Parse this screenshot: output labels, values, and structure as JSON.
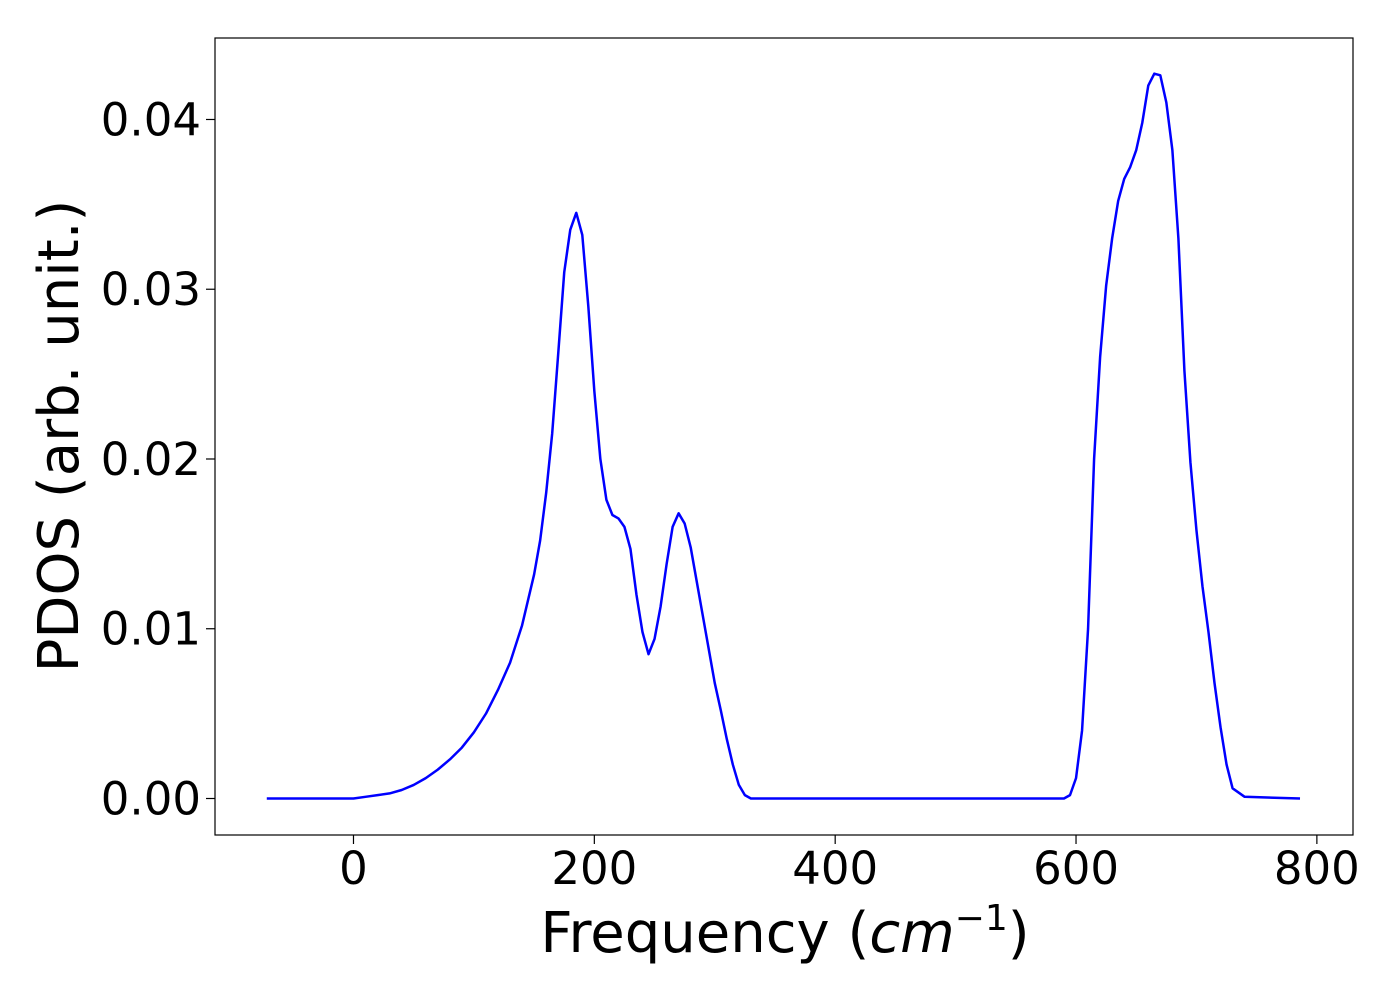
{
  "chart_data": {
    "type": "line",
    "xlabel_prefix": "Frequency (",
    "xlabel_unit": "cm",
    "xlabel_exponent": "−1",
    "xlabel_suffix": ")",
    "ylabel": "PDOS (arb. unit.)",
    "xlim": [
      -115,
      830
    ],
    "ylim": [
      -0.00215,
      0.0448
    ],
    "xticks": [
      0,
      200,
      400,
      600,
      800
    ],
    "xtick_labels": [
      "0",
      "200",
      "400",
      "600",
      "800"
    ],
    "yticks": [
      0.0,
      0.01,
      0.02,
      0.03,
      0.04
    ],
    "ytick_labels": [
      "0.00",
      "0.01",
      "0.02",
      "0.03",
      "0.04"
    ],
    "grid": false,
    "series": [
      {
        "color": "#0000ff",
        "x": [
          -72,
          -40,
          0,
          10,
          20,
          30,
          40,
          50,
          60,
          70,
          80,
          90,
          100,
          110,
          120,
          130,
          140,
          150,
          155,
          160,
          165,
          170,
          175,
          180,
          185,
          190,
          195,
          200,
          205,
          210,
          215,
          220,
          225,
          230,
          235,
          240,
          245,
          250,
          255,
          260,
          265,
          270,
          275,
          280,
          285,
          290,
          295,
          300,
          305,
          310,
          315,
          320,
          325,
          330,
          340,
          400,
          500,
          580,
          590,
          595,
          600,
          605,
          610,
          615,
          620,
          625,
          630,
          635,
          640,
          645,
          650,
          655,
          660,
          665,
          670,
          675,
          680,
          685,
          690,
          695,
          700,
          705,
          710,
          715,
          720,
          725,
          730,
          740,
          786
        ],
        "y": [
          0.0,
          0.0,
          0.0,
          0.0001,
          0.0002,
          0.0003,
          0.0005,
          0.0008,
          0.0012,
          0.0017,
          0.0023,
          0.003,
          0.0039,
          0.005,
          0.0064,
          0.008,
          0.0102,
          0.0132,
          0.0152,
          0.018,
          0.0215,
          0.0262,
          0.031,
          0.0335,
          0.0345,
          0.0332,
          0.029,
          0.024,
          0.02,
          0.0176,
          0.0167,
          0.0165,
          0.016,
          0.0147,
          0.012,
          0.0098,
          0.0085,
          0.0094,
          0.0113,
          0.0138,
          0.016,
          0.0168,
          0.0162,
          0.0148,
          0.0128,
          0.0108,
          0.0088,
          0.0068,
          0.0052,
          0.0035,
          0.002,
          0.0008,
          0.0002,
          0.0,
          0.0,
          0.0,
          0.0,
          0.0,
          0.0,
          0.0002,
          0.0012,
          0.004,
          0.01,
          0.02,
          0.026,
          0.0302,
          0.033,
          0.0352,
          0.0365,
          0.0372,
          0.0382,
          0.0398,
          0.042,
          0.0427,
          0.0426,
          0.041,
          0.0382,
          0.033,
          0.0252,
          0.0198,
          0.0158,
          0.0125,
          0.0098,
          0.0068,
          0.0042,
          0.002,
          0.0006,
          0.0001,
          0.0
        ]
      }
    ]
  }
}
